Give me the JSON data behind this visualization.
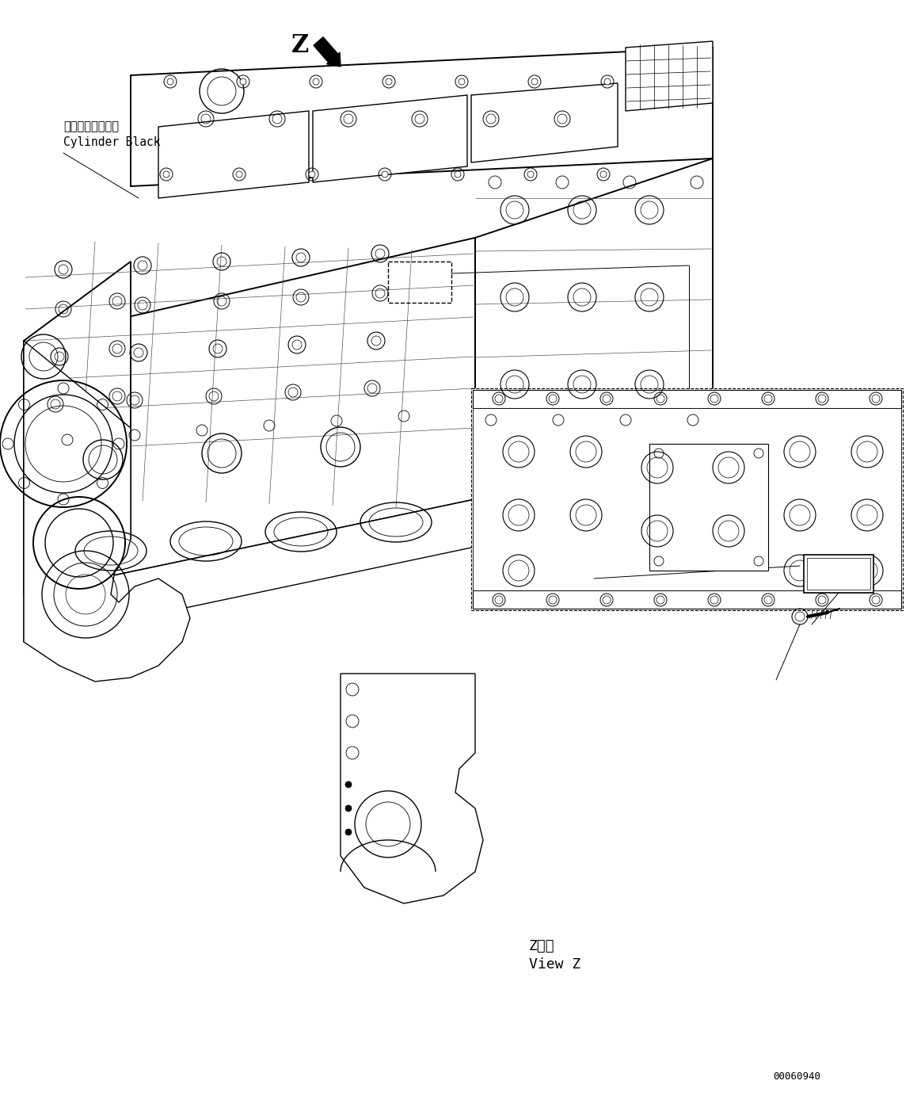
{
  "background_color": "#ffffff",
  "line_color": "#000000",
  "title_code": "00060940",
  "label_z": "Z",
  "label_z_view_jp": "Z　視",
  "label_z_view_en": "View Z",
  "label_cylinder_jp": "シリンダブロック",
  "label_cylinder_en": "Cylinder Black",
  "fig_width": 11.63,
  "fig_height": 13.83,
  "dpi": 100
}
